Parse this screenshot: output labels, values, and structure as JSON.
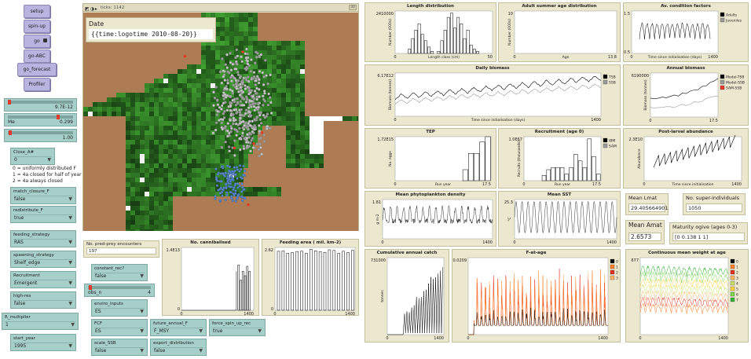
{
  "buttons": [
    {
      "id": "setup",
      "label": "setup"
    },
    {
      "id": "spin-up",
      "label": "spin-up"
    },
    {
      "id": "go",
      "label": "go"
    },
    {
      "id": "go-ABC",
      "label": "go-ABC"
    },
    {
      "id": "go_forecast",
      "label": "go_forecast"
    },
    {
      "id": "Profiler",
      "label": "Profiler"
    }
  ],
  "sliders": [
    {
      "name": "",
      "value": "9.7E-12",
      "level": 0.02
    },
    {
      "name": "Me",
      "value": "0.299",
      "level": 0.75
    },
    {
      "name": "",
      "value": "1.00",
      "level": 0.02
    }
  ],
  "closure_chooser": {
    "name": "Close_A#",
    "value": "0"
  },
  "closure_note": "0 = uniformly distributed F\n1 = 4a closed for half of year\n2 = 4a always closed",
  "choosers_left": [
    {
      "name": "match_closure_F",
      "value": "false"
    },
    {
      "name": "redistribute_F",
      "value": "true"
    },
    {
      "name": "feeding_strategy",
      "value": "RAS"
    },
    {
      "name": "spawning_strategy",
      "value": "Shelf_edge"
    },
    {
      "name": "Recruitment",
      "value": "Emergent"
    },
    {
      "name": "high-res",
      "value": "false"
    },
    {
      "name": "R_multiplier",
      "value": "1"
    },
    {
      "name": "start_year",
      "value": "1995"
    }
  ],
  "world": {
    "ticks_label": "ticks: 1142",
    "speed_badge": "30"
  },
  "date_monitor": {
    "name": "Date",
    "value": "{{time:logotime 2010-08-20}}"
  },
  "encounters_monitor": {
    "name": "No. pred-prey encounters",
    "value": "197"
  },
  "choosers_bottom": [
    {
      "name": "constant_rec?",
      "value": "false"
    },
    {
      "name": "enviro_inputs",
      "value": "ES"
    },
    {
      "name": "FCF",
      "value": "ES"
    },
    {
      "name": "scale_SSB",
      "value": "false"
    },
    {
      "name": "future_annual_F",
      "value": "F_MSY"
    },
    {
      "name": "export_distribution",
      "value": "false"
    },
    {
      "name": "force_spin_up_rec",
      "value": "true"
    }
  ],
  "bottom_slider": {
    "name": "obs_n",
    "value": "4"
  },
  "monitors_right": [
    {
      "name": "Mean Lmat",
      "value": "29.405664901"
    },
    {
      "name": "No. super-individuals",
      "value": "1050"
    },
    {
      "name": "Mean Amat",
      "value": "2.6573"
    },
    {
      "name": "Maturity ogive (ages 0-3)",
      "value": "[0 0.138 1 1]"
    }
  ],
  "plots": {
    "cannibalised": {
      "title": "No. cannibalised",
      "ytop": "1.4E13",
      "y0": "0",
      "x0": "0",
      "x1": "1400"
    },
    "feeding_area": {
      "title": "Feeding area ( mil. km-2)",
      "ytop": "2.62",
      "y0": "0",
      "x0": "0",
      "x1": "1400"
    },
    "length_dist": {
      "title": "Length distribution",
      "ytop": "2410000",
      "ylabel": "Number (000s)",
      "xlabel": "Length class (cm)",
      "x0": "0",
      "x1": "50"
    },
    "adult_age": {
      "title": "Adult summer age distribution",
      "ytop": "10",
      "ylabel": "Number (000s)",
      "xlabel": "Age",
      "x0": "0",
      "x1": "13.8"
    },
    "condition": {
      "title": "Av. condition factors",
      "ytop": "1.5",
      "y0": "0.5",
      "xlabel": "Time since initialisation (days)",
      "x0": "0",
      "x1": "1400",
      "legend": [
        "Adults",
        "Juveniles"
      ]
    },
    "daily_biomass": {
      "title": "Daily biomass",
      "ytop": "6.17E12",
      "ylabel": "Biomass (tonnes)",
      "xlabel": "Time since initialisation (days)",
      "x0": "0",
      "x1": "1400",
      "legend": [
        "TSB",
        "SSB"
      ]
    },
    "annual_biomass": {
      "title": "Annual biomass",
      "ytop": "6190000",
      "ylabel": "Biomass (tonnes)",
      "x0": "0",
      "x1": "17.5",
      "legend": [
        "Model-TSB",
        "Model-SSB",
        "SAM-SSB"
      ]
    },
    "tep": {
      "title": "TEP",
      "ytop": "1.72E15",
      "ylabel": "No. eggs",
      "xlabel": "Run year",
      "x0": "0",
      "x1": "17.5"
    },
    "recruitment": {
      "title": "Recruitment (age 0)",
      "ytop": "1.0E67",
      "ylabel": "Recruits (thousands)",
      "xlabel": "Run year",
      "x0": "0",
      "x1": "17.5",
      "legend": [
        "IBM",
        "SAM"
      ]
    },
    "post_larval": {
      "title": "Post-larval abundance",
      "ytop": "2.3E10",
      "ylabel": "Abundance",
      "xlabel": "Time since initialisation",
      "x0": "0",
      "x1": "1400"
    },
    "phyto": {
      "title": "Mean phytoplankton density",
      "ytop": "1.81",
      "ylabel": "g m-2",
      "x0": "0",
      "x1": "1400"
    },
    "sst": {
      "title": "Mean SST",
      "ytop": "25.3",
      "ylabel": "°C",
      "x0": "0",
      "x1": "1400"
    },
    "catch": {
      "title": "Cumulative annual catch",
      "ytop": "731000",
      "ylabel": "tonnes",
      "x0": "0",
      "x1": "1400"
    },
    "f_at_age": {
      "title": "F-at-age",
      "ytop": "0.0209",
      "x0": "0",
      "x1": "1400",
      "legend": [
        "0",
        "1",
        "2",
        "3"
      ]
    },
    "weight_age": {
      "title": "Continuous mean weight at age",
      "ytop": "677",
      "x0": "0",
      "x1": "1400",
      "legend": [
        "0",
        "1",
        "2",
        "3",
        "4",
        "5",
        "6",
        "7"
      ]
    }
  },
  "colors": {
    "button": "#b7b4e0",
    "widget": "#a6cfc9",
    "monitor": "#ece7cf",
    "land": "#ad7c55",
    "sea_dark": "#173d12",
    "sea_bright": "#4fa33a",
    "age_palette": [
      "#000000",
      "#ff7f27",
      "#e03020",
      "#ffb366",
      "#c8e06a",
      "#ffd23a",
      "#7cd650",
      "#33b233"
    ]
  }
}
